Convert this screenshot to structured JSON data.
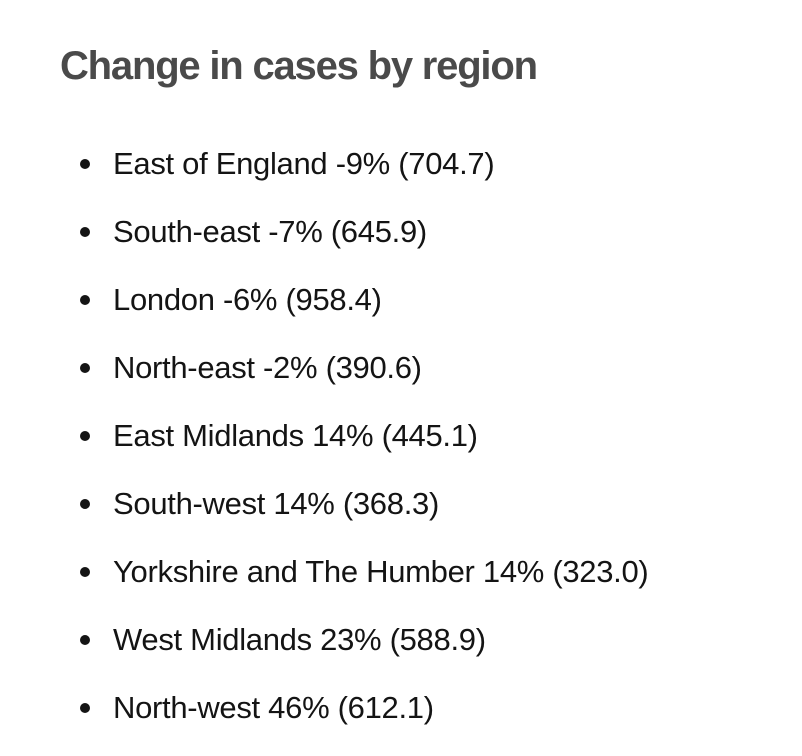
{
  "heading": "Change in cases by region",
  "regions": [
    {
      "text": "East of England -9% (704.7)"
    },
    {
      "text": "South-east -7% (645.9)"
    },
    {
      "text": "London -6% (958.4)"
    },
    {
      "text": "North-east -2% (390.6)"
    },
    {
      "text": "East Midlands 14% (445.1)"
    },
    {
      "text": "South-west 14% (368.3)"
    },
    {
      "text": "Yorkshire and The Humber 14% (323.0)"
    },
    {
      "text": "West Midlands 23% (588.9)"
    },
    {
      "text": "North-west 46% (612.1)"
    }
  ]
}
